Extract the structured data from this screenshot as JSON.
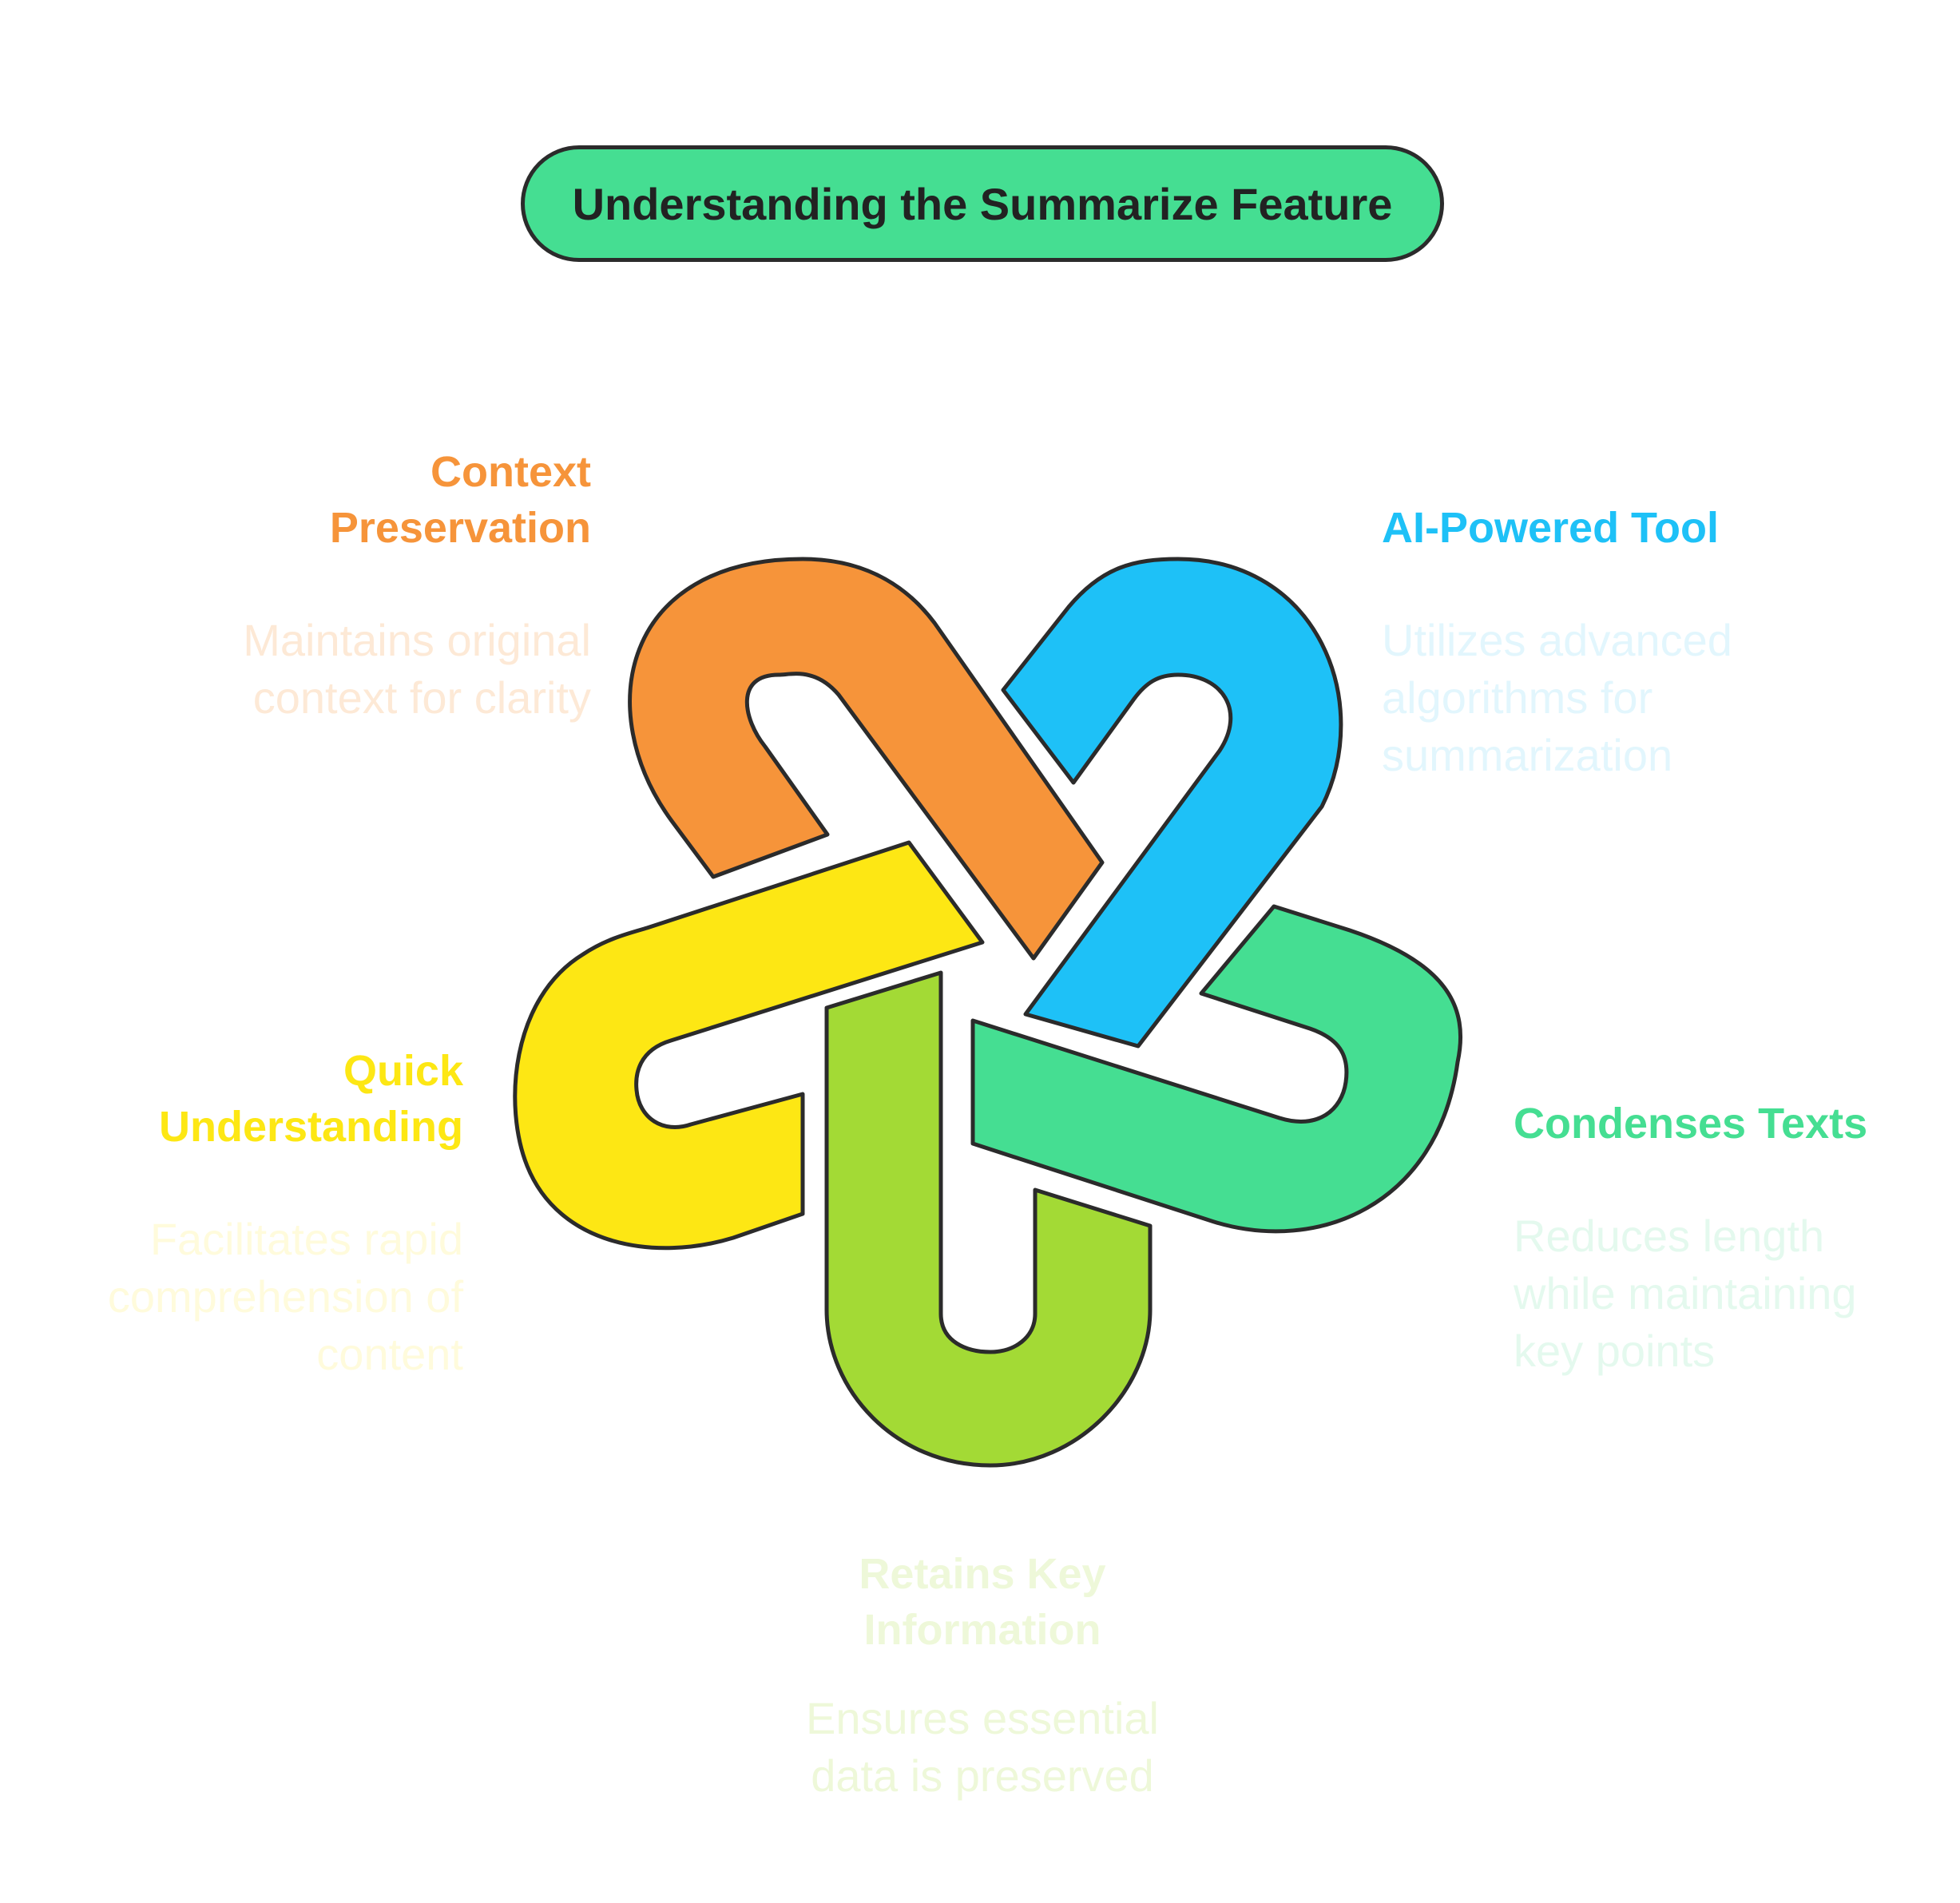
{
  "title": "Understanding the Summarize Feature",
  "colors": {
    "orange": "#f6943a",
    "blue": "#1ec1f7",
    "green": "#45de92",
    "lime": "#a3da35",
    "yellow": "#fde714",
    "outline": "#2b2b2b"
  },
  "items": {
    "context_preservation": {
      "title_line1": "Context",
      "title_line2": "Preservation",
      "desc_line1": "Maintains original",
      "desc_line2": "context for clarity",
      "color": "#f6943a"
    },
    "ai_powered_tool": {
      "title_line1": "AI-Powered Tool",
      "desc_line1": "Utilizes advanced",
      "desc_line2": "algorithms for",
      "desc_line3": "summarization",
      "color": "#1ec1f7"
    },
    "condenses_texts": {
      "title_line1": "Condenses Texts",
      "desc_line1": "Reduces length",
      "desc_line2": "while maintaining",
      "desc_line3": "key points",
      "color": "#45de92"
    },
    "quick_understanding": {
      "title_line1": "Quick",
      "title_line2": "Understanding",
      "desc_line1": "Facilitates rapid",
      "desc_line2": "comprehension of",
      "desc_line3": "content",
      "color": "#fde714"
    },
    "retains_key_information": {
      "title_line1": "Retains Key",
      "title_line2": "Information",
      "desc_line1": "Ensures essential",
      "desc_line2": "data is preserved",
      "color": "#a3da35"
    }
  }
}
